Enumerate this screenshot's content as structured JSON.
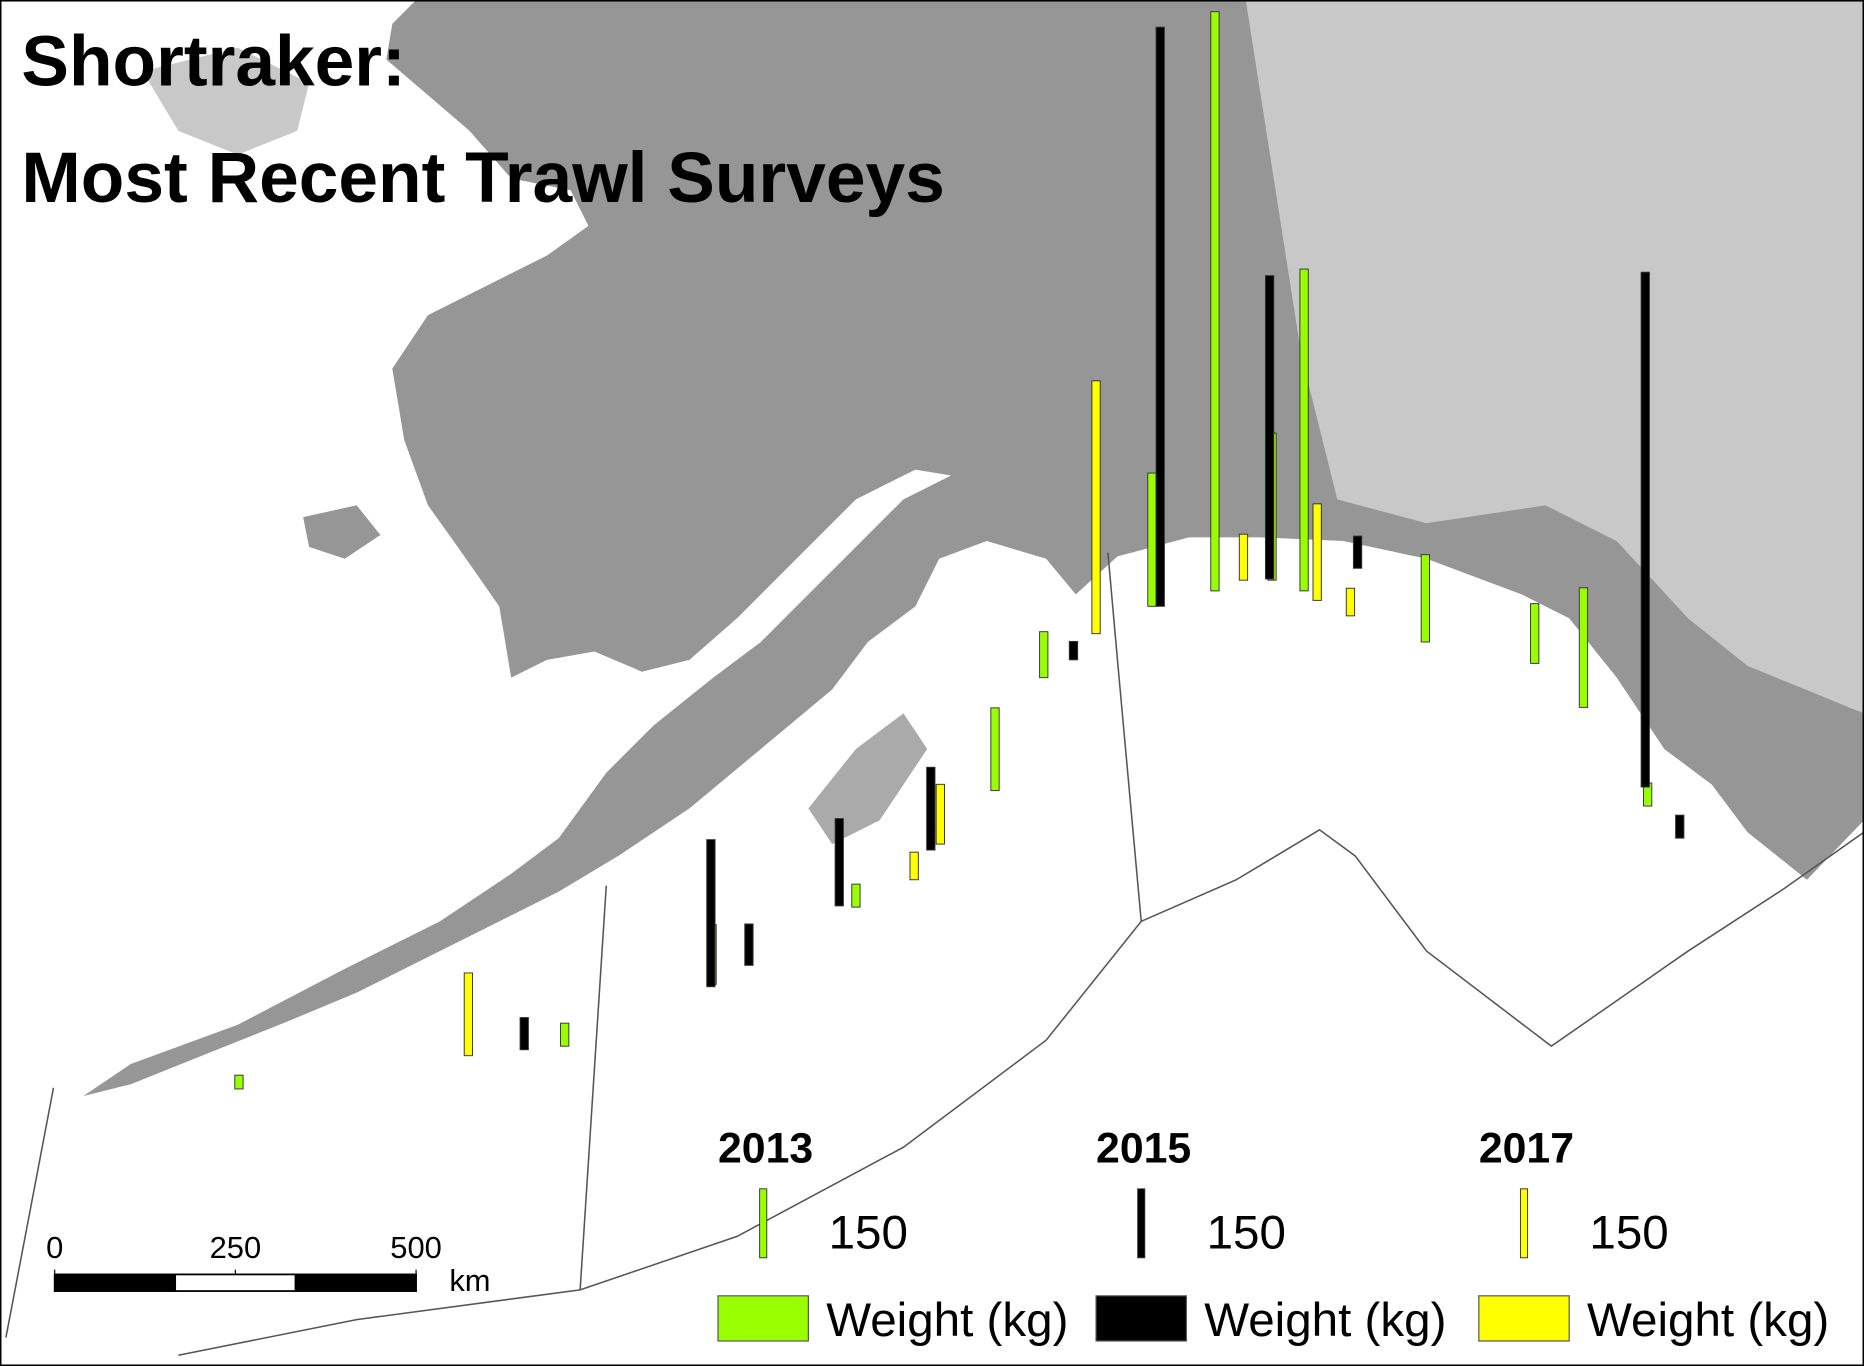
{
  "title": [
    "Shortraker:",
    "Most Recent Trawl Surveys"
  ],
  "scale_bar": {
    "ticks": [
      0,
      250,
      500
    ],
    "unit": "km"
  },
  "surveys": [
    {
      "year": "2013",
      "color": "#99ff00",
      "legend_size": 150,
      "legend_label": "Weight (kg)",
      "weights": [
        1260,
        290,
        700,
        320,
        190,
        260,
        130,
        180,
        130,
        100,
        50,
        50,
        50,
        30
      ]
    },
    {
      "year": "2015",
      "color": "#000000",
      "legend_size": 150,
      "legend_label": "Weight (kg)",
      "weights": [
        1260,
        660,
        1120,
        320,
        190,
        180,
        90,
        70,
        70,
        50,
        40
      ]
    },
    {
      "year": "2017",
      "color": "#ffff00",
      "legend_size": 150,
      "legend_label": "Weight (kg)",
      "weights": [
        550,
        180,
        210,
        130,
        60,
        60,
        100
      ]
    }
  ]
}
